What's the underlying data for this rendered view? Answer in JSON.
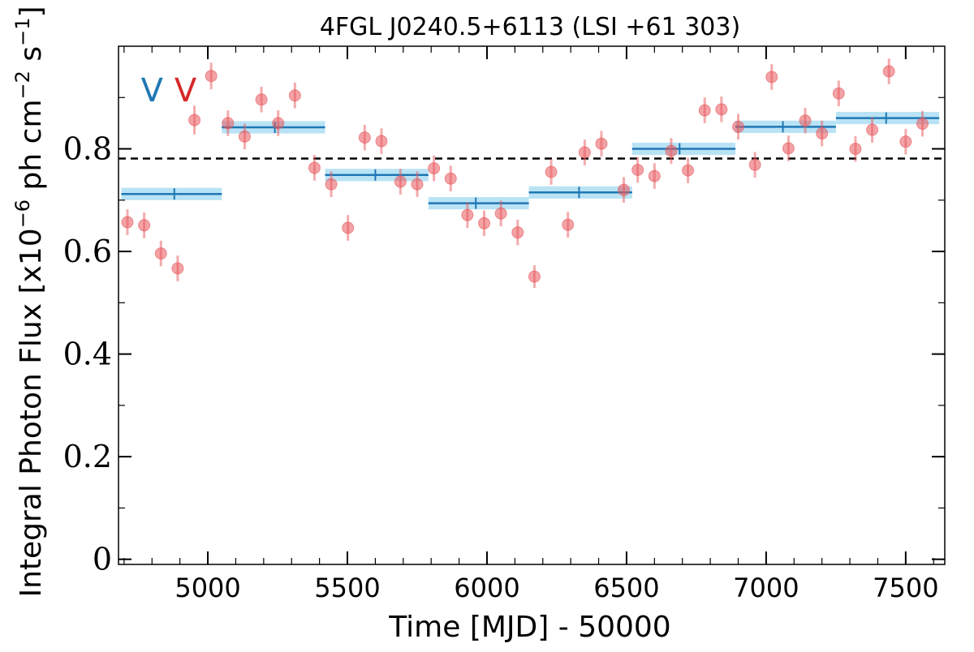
{
  "chart_data": {
    "type": "scatter",
    "title": "4FGL J0240.5+6113 (LSI +61 303)",
    "xlabel": "Time [MJD] - 50000",
    "ylabel": "Integral Photon Flux [x10",
    "ylabel_exp": "−6",
    "ylabel_mid": " ph cm",
    "ylabel_exp2": "−2",
    "ylabel_mid2": " s",
    "ylabel_exp3": "−1",
    "ylabel_end": "]",
    "xlim": [
      4680,
      7640
    ],
    "ylim": [
      -0.01,
      1.0
    ],
    "x_ticks": [
      5000,
      5500,
      6000,
      6500,
      7000,
      7500
    ],
    "x_tick_labels": [
      "5000",
      "5500",
      "6000",
      "6500",
      "7000",
      "7500"
    ],
    "y_ticks": [
      0,
      0.2,
      0.4,
      0.6,
      0.8
    ],
    "y_tick_labels": [
      "0",
      "0.2",
      "0.4",
      "0.6",
      "0.8"
    ],
    "reference_line": {
      "y": 0.781,
      "style": "dashed",
      "color": "#000000"
    },
    "annotations": [
      {
        "text": "V",
        "color": "#1f77b4",
        "x": 4800,
        "y": 0.915
      },
      {
        "text": "V",
        "color": "#d62728",
        "x": 4920,
        "y": 0.915
      }
    ],
    "series": [
      {
        "color": "#e8585c",
        "kind": "points",
        "x": [
          4712,
          4772,
          4832,
          4892,
          4952,
          5012,
          5072,
          5132,
          5192,
          5252,
          5312,
          5382,
          5442,
          5502,
          5562,
          5622,
          5690,
          5750,
          5810,
          5870,
          5930,
          5990,
          6050,
          6110,
          6170,
          6230,
          6290,
          6350,
          6410,
          6490,
          6540,
          6600,
          6660,
          6720,
          6780,
          6840,
          6900,
          6960,
          7020,
          7080,
          7140,
          7200,
          7260,
          7320,
          7380,
          7440,
          7500,
          7560
        ],
        "y": [
          0.657,
          0.651,
          0.596,
          0.567,
          0.856,
          0.942,
          0.85,
          0.824,
          0.896,
          0.85,
          0.904,
          0.763,
          0.731,
          0.646,
          0.822,
          0.815,
          0.736,
          0.731,
          0.762,
          0.742,
          0.671,
          0.655,
          0.674,
          0.637,
          0.551,
          0.755,
          0.652,
          0.793,
          0.81,
          0.72,
          0.759,
          0.747,
          0.796,
          0.758,
          0.875,
          0.877,
          0.843,
          0.769,
          0.94,
          0.801,
          0.855,
          0.83,
          0.908,
          0.8,
          0.837,
          0.951,
          0.814,
          0.849
        ],
        "yerr": [
          0.025,
          0.025,
          0.025,
          0.025,
          0.028,
          0.026,
          0.025,
          0.025,
          0.025,
          0.025,
          0.025,
          0.025,
          0.025,
          0.025,
          0.025,
          0.025,
          0.025,
          0.025,
          0.025,
          0.025,
          0.025,
          0.025,
          0.025,
          0.025,
          0.022,
          0.025,
          0.025,
          0.025,
          0.025,
          0.025,
          0.025,
          0.025,
          0.025,
          0.025,
          0.025,
          0.025,
          0.025,
          0.025,
          0.025,
          0.025,
          0.025,
          0.025,
          0.025,
          0.025,
          0.025,
          0.025,
          0.025,
          0.025
        ]
      },
      {
        "color": "#1f77b4",
        "band_color": "#b9e3f5",
        "kind": "bins",
        "bins": [
          {
            "x0": 4690,
            "x1": 5050,
            "xc": 4880,
            "y": 0.712,
            "yerr": 0.012
          },
          {
            "x0": 5050,
            "x1": 5420,
            "xc": 5240,
            "y": 0.842,
            "yerr": 0.012
          },
          {
            "x0": 5420,
            "x1": 5790,
            "xc": 5600,
            "y": 0.749,
            "yerr": 0.012
          },
          {
            "x0": 5790,
            "x1": 6150,
            "xc": 5960,
            "y": 0.694,
            "yerr": 0.012
          },
          {
            "x0": 6150,
            "x1": 6520,
            "xc": 6330,
            "y": 0.715,
            "yerr": 0.012
          },
          {
            "x0": 6520,
            "x1": 6890,
            "xc": 6690,
            "y": 0.8,
            "yerr": 0.012
          },
          {
            "x0": 6890,
            "x1": 7250,
            "xc": 7060,
            "y": 0.843,
            "yerr": 0.012
          },
          {
            "x0": 7250,
            "x1": 7620,
            "xc": 7430,
            "y": 0.86,
            "yerr": 0.012
          }
        ]
      }
    ]
  }
}
